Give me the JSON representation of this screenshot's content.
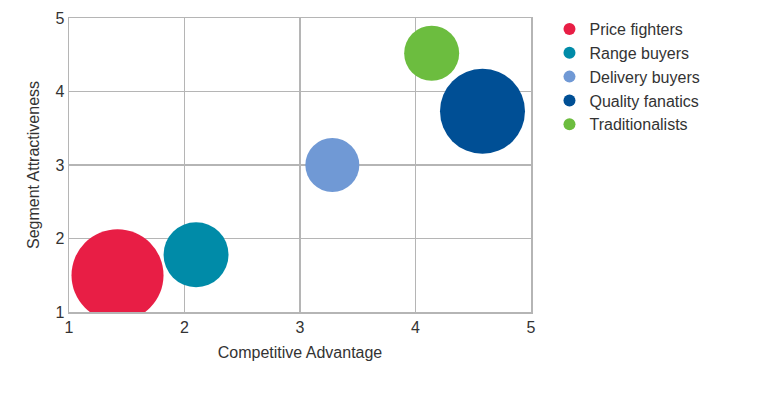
{
  "chart_data": {
    "type": "bubble",
    "x_label": "Competitive Advantage",
    "y_label": "Segment Attractiveness",
    "series": [
      {
        "name": "Price fighters",
        "color": "#e81e45",
        "x": [
          1.42
        ],
        "values": [
          1.5
        ],
        "size": [
          92
        ]
      },
      {
        "name": "Range buyers",
        "color": "#008ba8",
        "x": [
          2.1
        ],
        "values": [
          1.78
        ],
        "size": [
          65
        ]
      },
      {
        "name": "Delivery buyers",
        "color": "#7099d5",
        "x": [
          3.28
        ],
        "values": [
          3.0
        ],
        "size": [
          54
        ]
      },
      {
        "name": "Quality fanatics",
        "color": "#004f95",
        "x": [
          4.58
        ],
        "values": [
          3.73
        ],
        "size": [
          85
        ]
      },
      {
        "name": "Traditionalists",
        "color": "#6cbd3f",
        "x": [
          4.14
        ],
        "values": [
          4.52
        ],
        "size": [
          55
        ]
      }
    ],
    "xlim": [
      1,
      5
    ],
    "xticks": [
      1,
      2,
      3,
      4,
      5
    ],
    "ylim": [
      1,
      5
    ],
    "yticks": [
      1,
      2,
      3,
      4,
      5
    ],
    "grid": true,
    "legend": "right"
  }
}
